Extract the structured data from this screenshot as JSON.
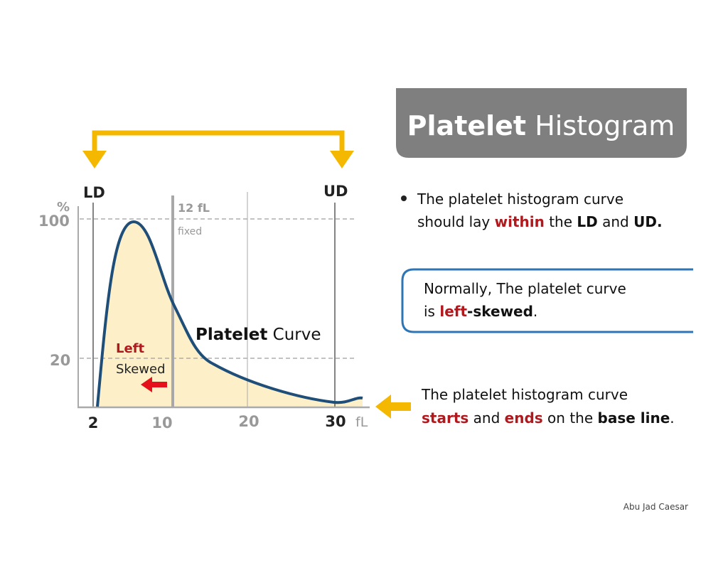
{
  "title": {
    "bold": "Platelet",
    "rest": "Histogram"
  },
  "graph": {
    "ld": "LD",
    "ud": "UD",
    "y_unit": "%",
    "y_top": "100",
    "y_mid": "20",
    "fixed_value": "12 fL",
    "fixed_note": "fixed",
    "skew_word": "Left",
    "skew_label": "Skewed",
    "curve_bold": "Platelet",
    "curve_rest": "Curve",
    "x_labels": [
      "2",
      "10",
      "20",
      "30"
    ],
    "x_unit": "fL"
  },
  "bullet": {
    "line1": "The platelet histogram curve",
    "line2": [
      "should lay",
      "within",
      "the",
      "LD",
      "and",
      "UD."
    ]
  },
  "note_box": {
    "line1": "Normally, The platelet curve",
    "line2": [
      "is",
      "left",
      "-skewed",
      "."
    ]
  },
  "baseline_note": {
    "line1": "The platelet histogram curve",
    "line2": [
      "starts",
      "and",
      "ends",
      "on the",
      "base line",
      "."
    ]
  },
  "footer": "Abu Jad Caesar"
}
